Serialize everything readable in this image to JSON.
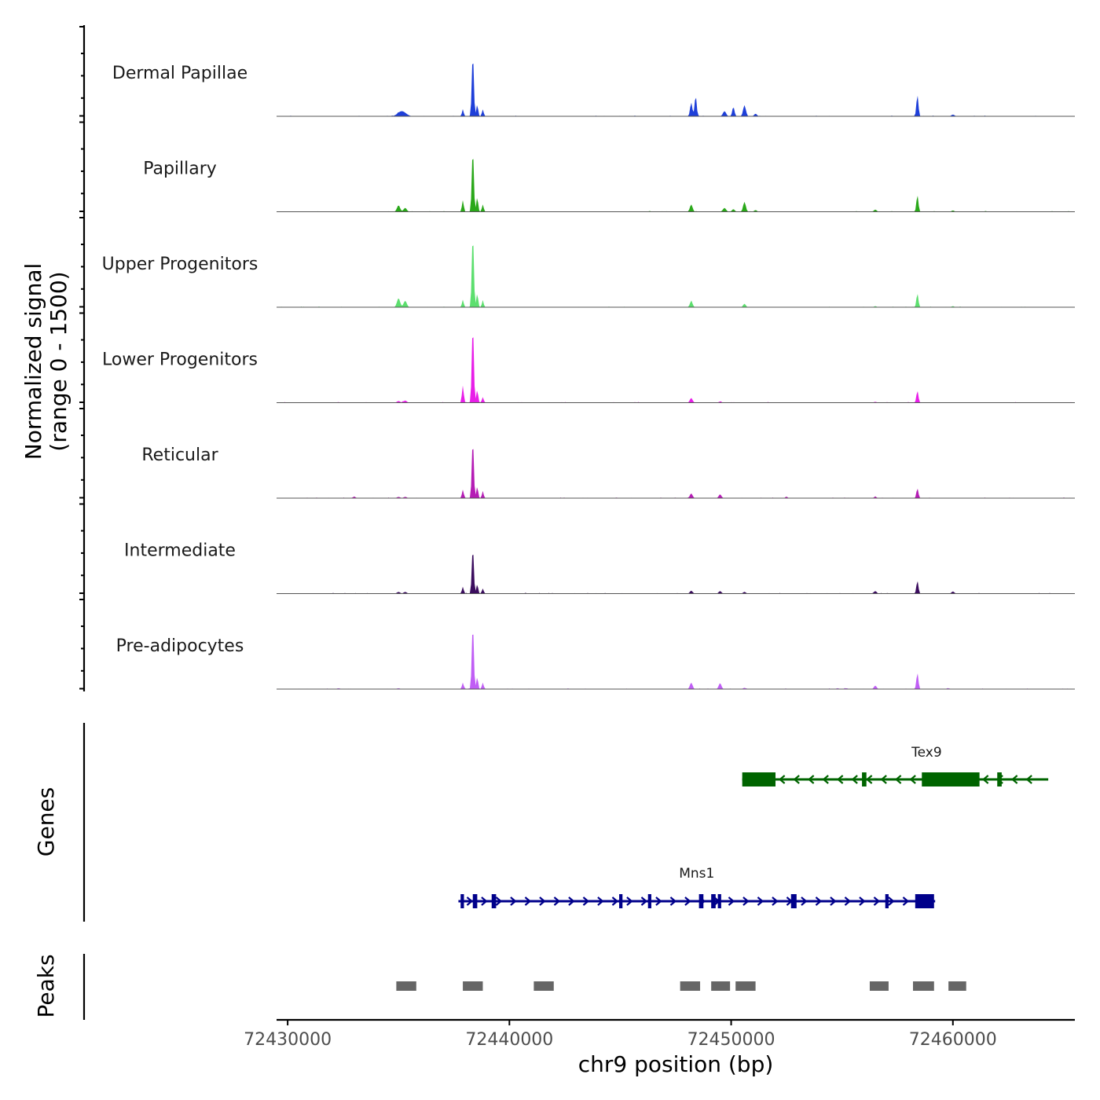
{
  "chart_data": {
    "type": "area",
    "title": "",
    "xlabel": "chr9 position (bp)",
    "ylabel_line1": "Normalized signal",
    "ylabel_line2": "(range 0 - 1500)",
    "ylim": [
      0,
      1500
    ],
    "xlim": [
      72429500,
      72465500
    ],
    "x_ticks": [
      72430000,
      72440000,
      72450000,
      72460000
    ],
    "x_tick_labels": [
      "72430000",
      "72440000",
      "72450000",
      "72460000"
    ],
    "series": [
      {
        "name": "Dermal Papillae",
        "color": "#1e3fd9",
        "peaks": [
          {
            "x": 72435150,
            "y": 120,
            "w": 180
          },
          {
            "x": 72437900,
            "y": 150,
            "w": 40
          },
          {
            "x": 72438350,
            "y": 1450,
            "w": 45
          },
          {
            "x": 72438550,
            "y": 260,
            "w": 40
          },
          {
            "x": 72438800,
            "y": 160,
            "w": 40
          },
          {
            "x": 72448200,
            "y": 320,
            "w": 50
          },
          {
            "x": 72448400,
            "y": 480,
            "w": 45
          },
          {
            "x": 72449700,
            "y": 120,
            "w": 70
          },
          {
            "x": 72450100,
            "y": 220,
            "w": 50
          },
          {
            "x": 72450600,
            "y": 260,
            "w": 60
          },
          {
            "x": 72451100,
            "y": 60,
            "w": 60
          },
          {
            "x": 72458400,
            "y": 500,
            "w": 45
          },
          {
            "x": 72460000,
            "y": 40,
            "w": 70
          }
        ]
      },
      {
        "name": "Papillary",
        "color": "#2aa81a",
        "peaks": [
          {
            "x": 72435000,
            "y": 150,
            "w": 70
          },
          {
            "x": 72435300,
            "y": 90,
            "w": 70
          },
          {
            "x": 72437900,
            "y": 270,
            "w": 40
          },
          {
            "x": 72438350,
            "y": 1450,
            "w": 45
          },
          {
            "x": 72438550,
            "y": 340,
            "w": 40
          },
          {
            "x": 72438800,
            "y": 170,
            "w": 40
          },
          {
            "x": 72448200,
            "y": 170,
            "w": 60
          },
          {
            "x": 72449700,
            "y": 90,
            "w": 70
          },
          {
            "x": 72450100,
            "y": 60,
            "w": 60
          },
          {
            "x": 72450600,
            "y": 230,
            "w": 60
          },
          {
            "x": 72451100,
            "y": 40,
            "w": 60
          },
          {
            "x": 72456500,
            "y": 50,
            "w": 60
          },
          {
            "x": 72458400,
            "y": 390,
            "w": 45
          },
          {
            "x": 72460000,
            "y": 30,
            "w": 60
          }
        ]
      },
      {
        "name": "Upper Progenitors",
        "color": "#5cdf6e",
        "peaks": [
          {
            "x": 72435000,
            "y": 210,
            "w": 70
          },
          {
            "x": 72435300,
            "y": 150,
            "w": 70
          },
          {
            "x": 72437900,
            "y": 170,
            "w": 40
          },
          {
            "x": 72438350,
            "y": 1700,
            "w": 45
          },
          {
            "x": 72438550,
            "y": 320,
            "w": 40
          },
          {
            "x": 72438800,
            "y": 150,
            "w": 40
          },
          {
            "x": 72448200,
            "y": 140,
            "w": 60
          },
          {
            "x": 72450600,
            "y": 80,
            "w": 60
          },
          {
            "x": 72456500,
            "y": 25,
            "w": 60
          },
          {
            "x": 72458400,
            "y": 320,
            "w": 45
          },
          {
            "x": 72460000,
            "y": 25,
            "w": 60
          }
        ]
      },
      {
        "name": "Lower Progenitors",
        "color": "#e81ee8",
        "peaks": [
          {
            "x": 72435000,
            "y": 40,
            "w": 70
          },
          {
            "x": 72435300,
            "y": 50,
            "w": 70
          },
          {
            "x": 72437900,
            "y": 400,
            "w": 40
          },
          {
            "x": 72438350,
            "y": 1800,
            "w": 45
          },
          {
            "x": 72438550,
            "y": 300,
            "w": 40
          },
          {
            "x": 72438800,
            "y": 130,
            "w": 40
          },
          {
            "x": 72448200,
            "y": 110,
            "w": 60
          },
          {
            "x": 72449500,
            "y": 25,
            "w": 60
          },
          {
            "x": 72456500,
            "y": 20,
            "w": 60
          },
          {
            "x": 72458400,
            "y": 280,
            "w": 45
          }
        ]
      },
      {
        "name": "Reticular",
        "color": "#b51cb5",
        "peaks": [
          {
            "x": 72433000,
            "y": 30,
            "w": 70
          },
          {
            "x": 72435000,
            "y": 30,
            "w": 70
          },
          {
            "x": 72435300,
            "y": 30,
            "w": 70
          },
          {
            "x": 72437900,
            "y": 200,
            "w": 40
          },
          {
            "x": 72438350,
            "y": 1350,
            "w": 45
          },
          {
            "x": 72438550,
            "y": 270,
            "w": 40
          },
          {
            "x": 72438800,
            "y": 150,
            "w": 40
          },
          {
            "x": 72448200,
            "y": 110,
            "w": 60
          },
          {
            "x": 72449500,
            "y": 90,
            "w": 60
          },
          {
            "x": 72452500,
            "y": 20,
            "w": 60
          },
          {
            "x": 72456500,
            "y": 30,
            "w": 60
          },
          {
            "x": 72458400,
            "y": 230,
            "w": 45
          }
        ]
      },
      {
        "name": "Intermediate",
        "color": "#3b0d5e",
        "peaks": [
          {
            "x": 72435000,
            "y": 40,
            "w": 70
          },
          {
            "x": 72435300,
            "y": 40,
            "w": 70
          },
          {
            "x": 72437900,
            "y": 160,
            "w": 40
          },
          {
            "x": 72438350,
            "y": 1070,
            "w": 45
          },
          {
            "x": 72438550,
            "y": 220,
            "w": 40
          },
          {
            "x": 72438800,
            "y": 120,
            "w": 40
          },
          {
            "x": 72448200,
            "y": 70,
            "w": 60
          },
          {
            "x": 72449500,
            "y": 60,
            "w": 60
          },
          {
            "x": 72450600,
            "y": 40,
            "w": 60
          },
          {
            "x": 72456500,
            "y": 60,
            "w": 60
          },
          {
            "x": 72458400,
            "y": 300,
            "w": 45
          },
          {
            "x": 72460000,
            "y": 50,
            "w": 60
          }
        ]
      },
      {
        "name": "Pre-adipocytes",
        "color": "#c05ef5",
        "peaks": [
          {
            "x": 72432300,
            "y": 20,
            "w": 70
          },
          {
            "x": 72435000,
            "y": 20,
            "w": 70
          },
          {
            "x": 72437900,
            "y": 150,
            "w": 40
          },
          {
            "x": 72438350,
            "y": 1500,
            "w": 45
          },
          {
            "x": 72438550,
            "y": 280,
            "w": 40
          },
          {
            "x": 72438800,
            "y": 150,
            "w": 40
          },
          {
            "x": 72448200,
            "y": 150,
            "w": 60
          },
          {
            "x": 72449500,
            "y": 140,
            "w": 60
          },
          {
            "x": 72450600,
            "y": 30,
            "w": 60
          },
          {
            "x": 72454800,
            "y": 20,
            "w": 60
          },
          {
            "x": 72455200,
            "y": 20,
            "w": 60
          },
          {
            "x": 72456500,
            "y": 80,
            "w": 60
          },
          {
            "x": 72458400,
            "y": 380,
            "w": 45
          },
          {
            "x": 72459800,
            "y": 20,
            "w": 60
          }
        ]
      }
    ],
    "genes_label": "Genes",
    "genes": [
      {
        "name": "Tex9",
        "strand": "-",
        "color": "#006400",
        "start": 72450500,
        "end": 72464300,
        "exons": [
          {
            "start": 72450500,
            "end": 72452000,
            "type": "utr"
          },
          {
            "start": 72455900,
            "end": 72456100,
            "type": "cds"
          },
          {
            "start": 72458600,
            "end": 72461200,
            "type": "utr"
          },
          {
            "start": 72462000,
            "end": 72462200,
            "type": "cds"
          }
        ]
      },
      {
        "name": "Mns1",
        "strand": "+",
        "color": "#00008b",
        "start": 72437700,
        "end": 72459200,
        "exons": [
          {
            "start": 72437800,
            "end": 72437950,
            "type": "cds"
          },
          {
            "start": 72438350,
            "end": 72438550,
            "type": "cds"
          },
          {
            "start": 72439200,
            "end": 72439400,
            "type": "cds"
          },
          {
            "start": 72444950,
            "end": 72445100,
            "type": "cds"
          },
          {
            "start": 72446250,
            "end": 72446400,
            "type": "cds"
          },
          {
            "start": 72448550,
            "end": 72448750,
            "type": "cds"
          },
          {
            "start": 72449100,
            "end": 72449300,
            "type": "cds"
          },
          {
            "start": 72449400,
            "end": 72449550,
            "type": "cds"
          },
          {
            "start": 72452700,
            "end": 72452950,
            "type": "cds"
          },
          {
            "start": 72456950,
            "end": 72457100,
            "type": "cds"
          },
          {
            "start": 72458300,
            "end": 72459150,
            "type": "utr"
          }
        ]
      }
    ],
    "peaks_label": "Peaks",
    "peak_color": "#666666",
    "peak_regions": [
      [
        72434900,
        72435800
      ],
      [
        72437900,
        72438800
      ],
      [
        72441100,
        72442000
      ],
      [
        72447700,
        72448600
      ],
      [
        72449100,
        72449950
      ],
      [
        72450200,
        72451100
      ],
      [
        72456250,
        72457100
      ],
      [
        72458200,
        72459150
      ],
      [
        72459800,
        72460600
      ]
    ]
  }
}
